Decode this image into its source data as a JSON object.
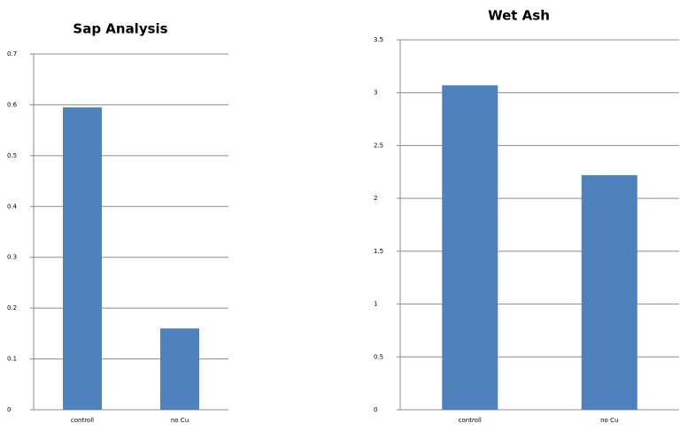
{
  "chart_data": [
    {
      "type": "bar",
      "title": "Sap Analysis",
      "categories": [
        "controll",
        "no Cu"
      ],
      "values": [
        0.595,
        0.16
      ],
      "color": "#4f81bd",
      "ylim": [
        0,
        0.7
      ],
      "yticks": [
        0,
        0.1,
        0.2,
        0.3,
        0.4,
        0.5,
        0.6,
        0.7
      ],
      "grid": true
    },
    {
      "type": "bar",
      "title": "Wet Ash",
      "categories": [
        "controll",
        "no Cu"
      ],
      "values": [
        3.07,
        2.22
      ],
      "color": "#4f81bd",
      "ylim": [
        0,
        3.5
      ],
      "yticks": [
        0,
        0.5,
        1,
        1.5,
        2,
        2.5,
        3,
        3.5
      ],
      "grid": true
    }
  ]
}
